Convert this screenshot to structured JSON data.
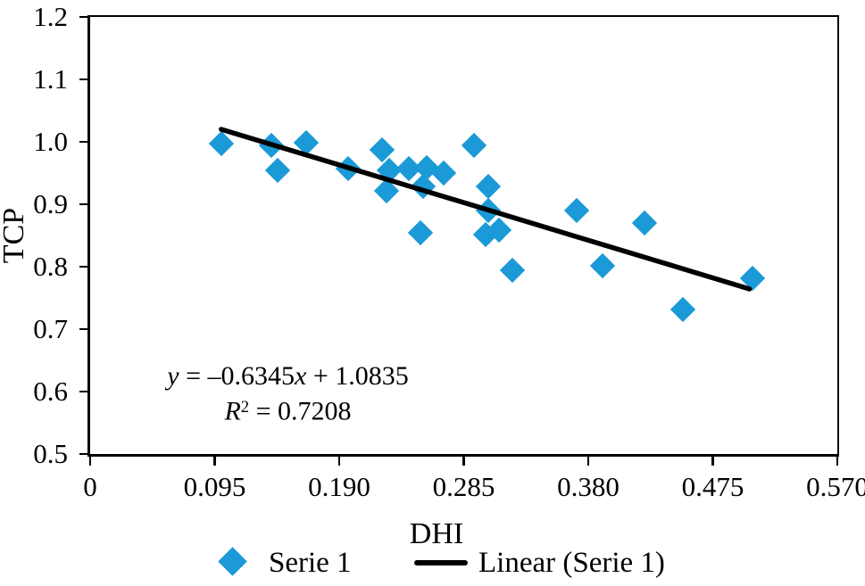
{
  "chart_data": {
    "type": "scatter",
    "title": "",
    "xlabel": "DHI",
    "ylabel": "TCP",
    "xlim": [
      0,
      0.57
    ],
    "ylim": [
      0.5,
      1.2
    ],
    "grid": false,
    "legend_position": "bottom",
    "x_ticks": [
      0,
      0.095,
      0.19,
      0.285,
      0.38,
      0.475,
      0.57
    ],
    "x_tick_labels": [
      "0",
      "0.095",
      "0.190",
      "0.285",
      "0.380",
      "0.475",
      "0.570"
    ],
    "y_ticks": [
      0.5,
      0.6,
      0.7,
      0.8,
      0.9,
      1.0,
      1.1,
      1.2
    ],
    "y_tick_labels": [
      "0.5",
      "0.6",
      "0.7",
      "0.8",
      "0.9",
      "1.0",
      "1.1",
      "1.2"
    ],
    "series": [
      {
        "name": "Serie 1",
        "marker": "diamond",
        "color": "#1b9ad7",
        "points": [
          [
            0.1,
            0.997
          ],
          [
            0.138,
            0.995
          ],
          [
            0.143,
            0.955
          ],
          [
            0.165,
            0.998
          ],
          [
            0.197,
            0.957
          ],
          [
            0.223,
            0.987
          ],
          [
            0.228,
            0.955
          ],
          [
            0.226,
            0.922
          ],
          [
            0.243,
            0.957
          ],
          [
            0.257,
            0.959
          ],
          [
            0.27,
            0.95
          ],
          [
            0.254,
            0.929
          ],
          [
            0.252,
            0.855
          ],
          [
            0.293,
            0.994
          ],
          [
            0.304,
            0.929
          ],
          [
            0.304,
            0.89
          ],
          [
            0.302,
            0.852
          ],
          [
            0.312,
            0.859
          ],
          [
            0.322,
            0.795
          ],
          [
            0.371,
            0.89
          ],
          [
            0.391,
            0.801
          ],
          [
            0.423,
            0.87
          ],
          [
            0.452,
            0.731
          ],
          [
            0.505,
            0.782
          ]
        ]
      }
    ],
    "trendline": {
      "name": "Linear (Serie 1)",
      "slope": -0.6345,
      "intercept": 1.0835,
      "x_start": 0.1,
      "x_end": 0.503,
      "color": "#000000",
      "equation_text": "y = –0.6345x + 1.0835",
      "r2_text": "R² = 0.7208"
    }
  },
  "annotation": {
    "eq_y": "y",
    "eq_mid": " = –0.6345",
    "eq_x": "x",
    "eq_tail": " + 1.0835",
    "r2_R": "R",
    "r2_sup": "2",
    "r2_tail": " = 0.7208"
  },
  "legend": {
    "serie1_label": "Serie 1",
    "linear_label": "Linear (Serie 1)"
  },
  "colors": {
    "marker": "#1b9ad7",
    "axis": "#000000",
    "text": "#000000"
  }
}
